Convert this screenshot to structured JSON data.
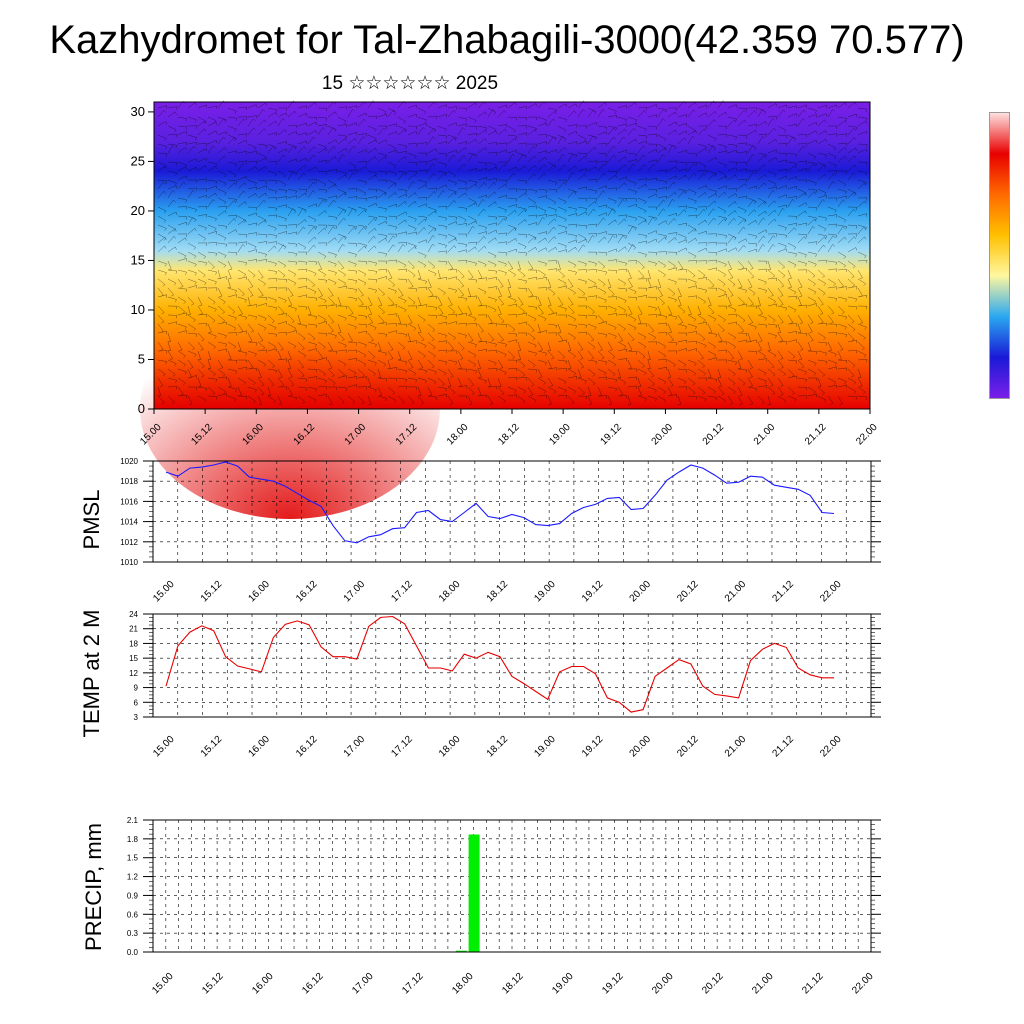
{
  "header": {
    "title": "Kazhydromet for Tal-Zhabagili-3000(42.359 70.577)",
    "subtitle": "15 ☆☆☆☆☆☆ 2025"
  },
  "colors": {
    "pmsl_line": "#1a1aff",
    "temp_line": "#e60000",
    "precip_bar": "#00ee00",
    "cross_section_scale": [
      "#7a1fe8",
      "#1a1ad6",
      "#2aa8f0",
      "#fff7a0",
      "#ffc000",
      "#ff6a00",
      "#e80000",
      "#ffffff"
    ]
  },
  "chart_data": [
    {
      "type": "heatmap",
      "name": "vertical-cross-section",
      "title": "",
      "xlabel": "",
      "ylabel": "",
      "x_ticks": [
        "15.00",
        "15.12",
        "16.00",
        "16.12",
        "17.00",
        "17.12",
        "18.00",
        "18.12",
        "19.00",
        "19.12",
        "20.00",
        "20.12",
        "21.00",
        "21.12",
        "22.00"
      ],
      "y_ticks": [
        0,
        5,
        10,
        15,
        20,
        25,
        30
      ],
      "ylim": [
        0,
        31
      ],
      "overlay": "wind barbs",
      "color_layers": [
        {
          "level": 0,
          "color": "#e60000"
        },
        {
          "level": 6,
          "color": "#ff6a00"
        },
        {
          "level": 10,
          "color": "#ffb000"
        },
        {
          "level": 14,
          "color": "#ffe670"
        },
        {
          "level": 16,
          "color": "#a0dcf5"
        },
        {
          "level": 20,
          "color": "#2aa0f0"
        },
        {
          "level": 24,
          "color": "#1a1ad6"
        },
        {
          "level": 27,
          "color": "#5a20e0"
        },
        {
          "level": 31,
          "color": "#7a1fe8"
        }
      ]
    },
    {
      "type": "line",
      "name": "pmsl",
      "ylabel": "PMSL",
      "x_ticks": [
        "15.00",
        "15.12",
        "16.00",
        "16.12",
        "17.00",
        "17.12",
        "18.00",
        "18.12",
        "19.00",
        "19.12",
        "20.00",
        "20.12",
        "21.00",
        "21.12",
        "22.00"
      ],
      "y_ticks": [
        1010,
        1012,
        1014,
        1016,
        1018,
        1020
      ],
      "ylim": [
        1010,
        1020
      ],
      "grid": true,
      "series": [
        {
          "values": [
            1018.9,
            1018.5,
            1019.3,
            1019.4,
            1019.6,
            1019.9,
            1019.5,
            1018.4,
            1018.2,
            1018.0,
            1017.5,
            1016.8,
            1016.1,
            1015.5,
            1013.6,
            1012.1,
            1011.9,
            1012.5,
            1012.7,
            1013.3,
            1013.4,
            1014.9,
            1015.1,
            1014.2,
            1014.0,
            1014.9,
            1015.8,
            1014.5,
            1014.3,
            1014.7,
            1014.4,
            1013.7,
            1013.6,
            1013.8,
            1014.8,
            1015.4,
            1015.7,
            1016.3,
            1016.4,
            1015.2,
            1015.3,
            1016.6,
            1018.1,
            1018.9,
            1019.6,
            1019.3,
            1018.6,
            1017.8,
            1017.9,
            1018.5,
            1018.4,
            1017.6,
            1017.4,
            1017.2,
            1016.6,
            1014.9,
            1014.8
          ]
        }
      ]
    },
    {
      "type": "line",
      "name": "temp-2m",
      "ylabel": "TEMP at 2 M",
      "x_ticks": [
        "15.00",
        "15.12",
        "16.00",
        "16.12",
        "17.00",
        "17.12",
        "18.00",
        "18.12",
        "19.00",
        "19.12",
        "20.00",
        "20.12",
        "21.00",
        "21.12",
        "22.00"
      ],
      "y_ticks": [
        3,
        6,
        9,
        12,
        15,
        18,
        21,
        24
      ],
      "ylim": [
        3,
        24
      ],
      "grid": true,
      "series": [
        {
          "values": [
            9.3,
            17.5,
            20.3,
            21.6,
            20.6,
            15.3,
            13.4,
            12.8,
            12.2,
            19.2,
            21.9,
            22.6,
            21.8,
            17.3,
            15.3,
            15.3,
            14.8,
            21.5,
            23.3,
            23.5,
            22.0,
            17.5,
            13.0,
            13.0,
            12.4,
            15.8,
            15.0,
            16.2,
            15.3,
            11.3,
            9.8,
            8.2,
            6.6,
            12.2,
            13.3,
            13.3,
            11.8,
            6.9,
            6.0,
            4.0,
            4.5,
            11.3,
            13.0,
            14.7,
            13.8,
            9.3,
            7.6,
            7.3,
            6.9,
            14.5,
            16.8,
            18.0,
            17.2,
            13.0,
            11.6,
            11.0,
            11.0
          ]
        }
      ]
    },
    {
      "type": "bar",
      "name": "precip",
      "ylabel": "PRECIP, mm",
      "x_ticks": [
        "15.00",
        "15.12",
        "16.00",
        "16.12",
        "17.00",
        "17.12",
        "18.00",
        "18.12",
        "19.00",
        "19.12",
        "20.00",
        "20.12",
        "21.00",
        "21.12",
        "22.00"
      ],
      "y_ticks": [
        "0.0",
        "0.3",
        "0.6",
        "0.9",
        "1.2",
        "1.5",
        "1.8",
        "2.1"
      ],
      "ylim": [
        0,
        2.1
      ],
      "grid": true,
      "bars": [
        {
          "x_hours": 72,
          "value": 0.02
        },
        {
          "x_hours": 75,
          "value": 1.87
        }
      ]
    }
  ]
}
